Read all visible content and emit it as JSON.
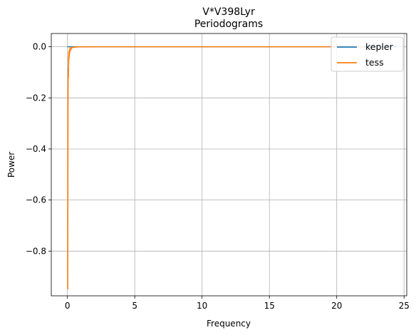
{
  "chart_data": {
    "type": "line",
    "title": "V*V398Lyr",
    "subtitle": "Periodograms",
    "xlabel": "Frequency",
    "ylabel": "Power",
    "xlim": [
      -1.2,
      25.2
    ],
    "ylim": [
      -0.975,
      0.052
    ],
    "x_ticks": [
      0,
      5,
      10,
      15,
      20,
      25
    ],
    "y_ticks": [
      0.0,
      -0.2,
      -0.4,
      -0.6,
      -0.8
    ],
    "x_tick_labels": [
      "0",
      "5",
      "10",
      "15",
      "20",
      "25"
    ],
    "y_tick_labels": [
      "0.0",
      "−0.2",
      "−0.4",
      "−0.6",
      "−0.8"
    ],
    "grid": true,
    "legend_position": "top-right",
    "series": [
      {
        "name": "kepler",
        "color": "#1f77b4",
        "x": [
          0,
          0.1,
          0.2,
          1,
          5,
          10,
          15,
          20,
          24.5
        ],
        "y": [
          0,
          0,
          0,
          0,
          0,
          0,
          0,
          0,
          0
        ]
      },
      {
        "name": "tess",
        "color": "#ff7f0e",
        "x": [
          0.02,
          0.03,
          0.04,
          0.05,
          0.06,
          0.07,
          0.08,
          0.09,
          0.1,
          0.11,
          0.12,
          0.13,
          0.14,
          0.15,
          0.16,
          0.18,
          0.2,
          0.22,
          0.24,
          0.26,
          0.28,
          0.3,
          0.33,
          0.36,
          0.4,
          0.45,
          0.5,
          0.55,
          0.6,
          0.7,
          0.8,
          0.9,
          1.0,
          1.2,
          2,
          5,
          10,
          15,
          20,
          22
        ],
        "y": [
          -0.95,
          -0.6,
          -0.26,
          -0.15,
          -0.08,
          -0.12,
          -0.04,
          -0.07,
          -0.02,
          -0.05,
          -0.03,
          -0.04,
          -0.015,
          -0.03,
          -0.01,
          -0.02,
          -0.006,
          -0.015,
          -0.004,
          -0.01,
          -0.003,
          -0.006,
          -0.002,
          -0.004,
          -0.001,
          -0.002,
          -0.001,
          -0.0015,
          -0.0005,
          -0.001,
          -0.0003,
          -0.0005,
          -0.0002,
          -0.0001,
          0,
          0,
          0,
          0,
          0,
          0
        ]
      }
    ]
  }
}
